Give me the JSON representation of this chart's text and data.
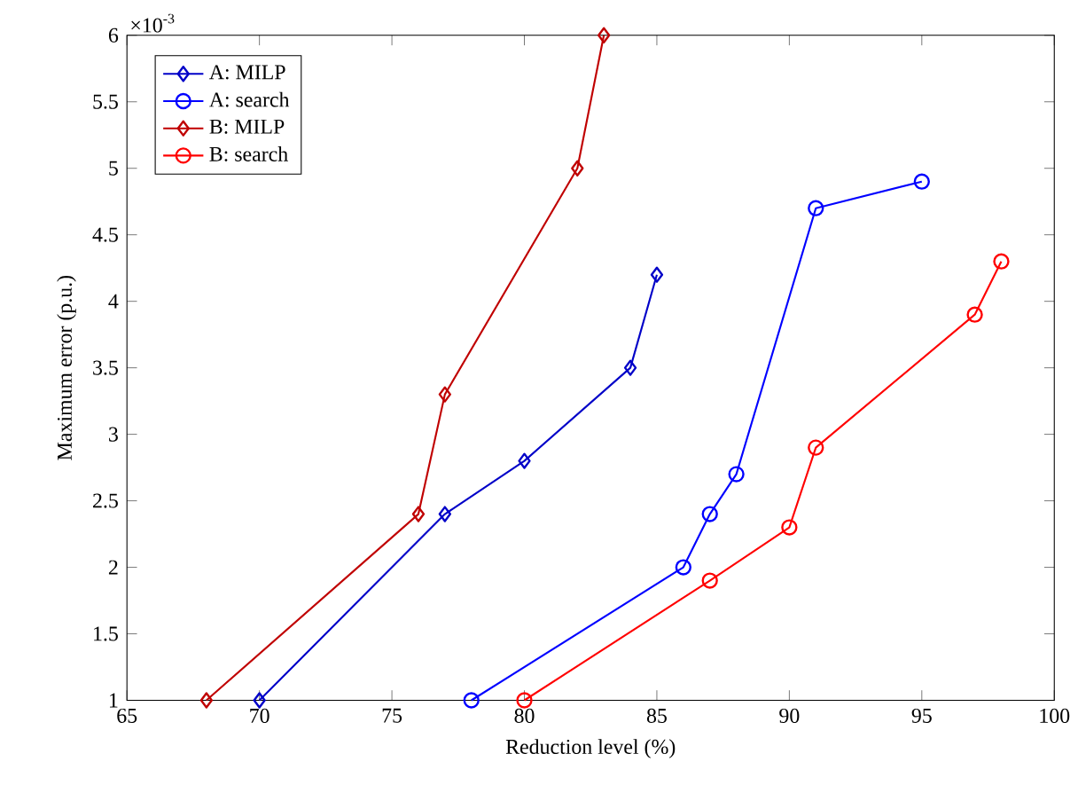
{
  "chart_data": {
    "type": "line",
    "xlabel": "Reduction level (%)",
    "ylabel": "Maximum error (p.u.)",
    "annotations": [
      "×10$^{-3}$"
    ],
    "xlim": [
      65,
      100
    ],
    "xticks": [
      65,
      70,
      75,
      80,
      85,
      90,
      95,
      100
    ],
    "ylim": [
      1,
      6
    ],
    "yticks": [
      1,
      1.5,
      2,
      2.5,
      3,
      3.5,
      4,
      4.5,
      5,
      5.5,
      6
    ],
    "legend": "top left",
    "grid": false,
    "line_style": "solid",
    "series": [
      {
        "name": "A: MILP",
        "color": "#0000c8",
        "marker": "diamond",
        "x": [
          70,
          77,
          80,
          84,
          85
        ],
        "values": [
          1,
          2.4,
          2.8,
          3.5,
          4.2
        ]
      },
      {
        "name": "A: search",
        "color": "#0000ff",
        "marker": "circle",
        "x": [
          78,
          86,
          87,
          88,
          91,
          95
        ],
        "values": [
          1,
          2,
          2.4,
          2.7,
          4.7,
          4.9
        ]
      },
      {
        "name": "B: MILP",
        "color": "#c00000",
        "marker": "diamond",
        "x": [
          68,
          76,
          77,
          82,
          83
        ],
        "values": [
          1,
          2.4,
          3.3,
          5,
          6
        ]
      },
      {
        "name": "B: search",
        "color": "#ff0000",
        "marker": "circle",
        "x": [
          80,
          87,
          90,
          91,
          97,
          98
        ],
        "values": [
          1,
          1.9,
          2.3,
          2.9,
          3.9,
          4.3
        ]
      }
    ]
  }
}
